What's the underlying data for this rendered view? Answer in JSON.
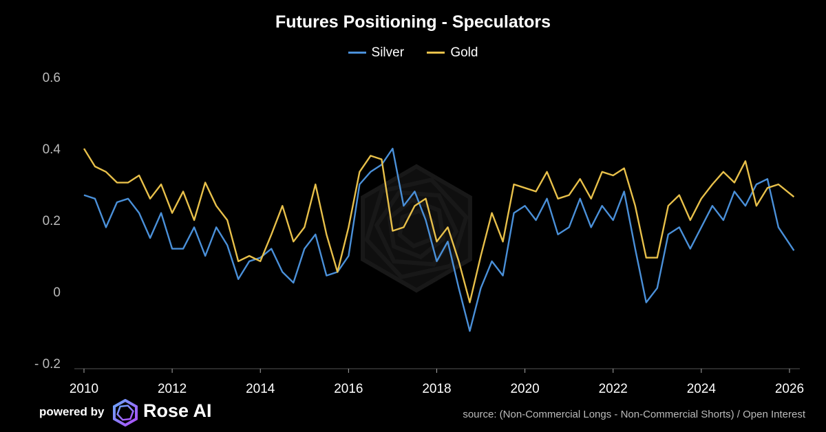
{
  "chart_data": {
    "type": "line",
    "title": "Futures Positioning - Speculators",
    "legend_placement": "top-center",
    "grid": false,
    "xlim": [
      2009.85,
      2026.3
    ],
    "ylim": [
      -0.2,
      0.6
    ],
    "yticks": [
      0.6,
      0.4,
      0.2,
      0,
      -0.2
    ],
    "ytick_labels": [
      "0.6",
      "0.4",
      "0.2",
      "0",
      "- 0.2"
    ],
    "xticks": [
      2010,
      2012,
      2014,
      2016,
      2018,
      2020,
      2022,
      2024,
      2026
    ],
    "xtick_labels": [
      "2010",
      "2012",
      "2014",
      "2016",
      "2018",
      "2020",
      "2022",
      "2024",
      "2026"
    ],
    "x": [
      2010.0,
      2010.25,
      2010.5,
      2010.75,
      2011.0,
      2011.25,
      2011.5,
      2011.75,
      2012.0,
      2012.25,
      2012.5,
      2012.75,
      2013.0,
      2013.25,
      2013.5,
      2013.75,
      2014.0,
      2014.25,
      2014.5,
      2014.75,
      2015.0,
      2015.25,
      2015.5,
      2015.75,
      2016.0,
      2016.25,
      2016.5,
      2016.75,
      2017.0,
      2017.25,
      2017.5,
      2017.75,
      2018.0,
      2018.25,
      2018.5,
      2018.75,
      2019.0,
      2019.25,
      2019.5,
      2019.75,
      2020.0,
      2020.25,
      2020.5,
      2020.75,
      2021.0,
      2021.25,
      2021.5,
      2021.75,
      2022.0,
      2022.25,
      2022.5,
      2022.75,
      2023.0,
      2023.25,
      2023.5,
      2023.75,
      2024.0,
      2024.25,
      2024.5,
      2024.75,
      2025.0,
      2025.25,
      2025.5,
      2025.75,
      2026.1
    ],
    "series": [
      {
        "name": "Silver",
        "color": "#4a90d9",
        "values": [
          0.27,
          0.26,
          0.18,
          0.25,
          0.26,
          0.22,
          0.15,
          0.22,
          0.12,
          0.12,
          0.18,
          0.1,
          0.18,
          0.13,
          0.035,
          0.085,
          0.095,
          0.12,
          0.055,
          0.025,
          0.12,
          0.16,
          0.045,
          0.055,
          0.1,
          0.3,
          0.335,
          0.355,
          0.4,
          0.24,
          0.28,
          0.2,
          0.085,
          0.14,
          0.01,
          -0.11,
          0.01,
          0.085,
          0.045,
          0.22,
          0.24,
          0.2,
          0.26,
          0.16,
          0.18,
          0.26,
          0.18,
          0.24,
          0.2,
          0.28,
          0.12,
          -0.03,
          0.01,
          0.16,
          0.18,
          0.12,
          0.18,
          0.24,
          0.2,
          0.28,
          0.24,
          0.3,
          0.315,
          0.18,
          0.115
        ]
      },
      {
        "name": "Gold",
        "color": "#e8c04a",
        "values": [
          0.4,
          0.35,
          0.335,
          0.305,
          0.305,
          0.325,
          0.26,
          0.3,
          0.22,
          0.28,
          0.2,
          0.305,
          0.24,
          0.2,
          0.085,
          0.1,
          0.085,
          0.16,
          0.24,
          0.14,
          0.18,
          0.3,
          0.16,
          0.055,
          0.18,
          0.335,
          0.38,
          0.37,
          0.17,
          0.18,
          0.24,
          0.26,
          0.14,
          0.18,
          0.085,
          -0.03,
          0.1,
          0.22,
          0.14,
          0.3,
          0.29,
          0.28,
          0.335,
          0.26,
          0.27,
          0.315,
          0.26,
          0.335,
          0.325,
          0.345,
          0.24,
          0.095,
          0.095,
          0.24,
          0.27,
          0.2,
          0.26,
          0.3,
          0.335,
          0.305,
          0.365,
          0.24,
          0.29,
          0.3,
          0.265
        ]
      }
    ]
  },
  "footer": {
    "powered_by": "powered by",
    "brand": "Rose AI",
    "source": "source: (Non-Commercial Longs - Non-Commercial Shorts) / Open Interest"
  }
}
